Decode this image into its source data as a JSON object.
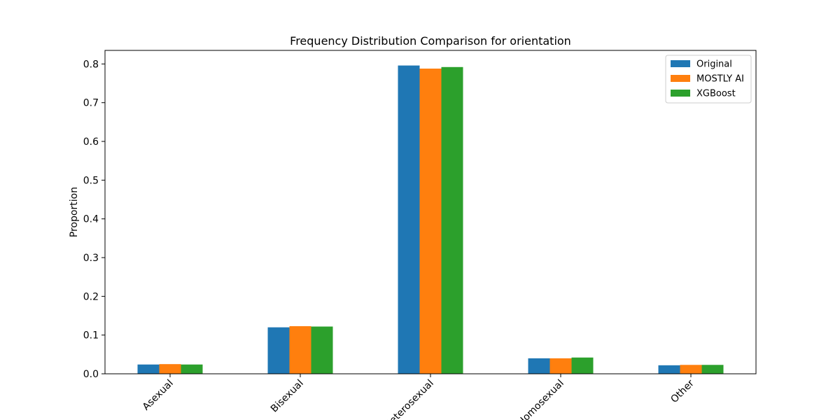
{
  "chart_data": {
    "type": "bar",
    "title": "Frequency Distribution Comparison for orientation",
    "xlabel": "",
    "ylabel": "Proportion",
    "ylim": [
      0,
      0.835
    ],
    "yticks": [
      0.0,
      0.1,
      0.2,
      0.3,
      0.4,
      0.5,
      0.6,
      0.7,
      0.8
    ],
    "ytick_labels": [
      "0.0",
      "0.1",
      "0.2",
      "0.3",
      "0.4",
      "0.5",
      "0.6",
      "0.7",
      "0.8"
    ],
    "categories": [
      "Asexual",
      "Bisexual",
      "Heterosexual",
      "Homosexual",
      "Other"
    ],
    "series": [
      {
        "name": "Original",
        "color": "#1f77b4",
        "values": [
          0.024,
          0.12,
          0.796,
          0.04,
          0.022
        ]
      },
      {
        "name": "MOSTLY AI",
        "color": "#ff7f0e",
        "values": [
          0.025,
          0.123,
          0.788,
          0.04,
          0.023
        ]
      },
      {
        "name": "XGBoost",
        "color": "#2ca02c",
        "values": [
          0.024,
          0.122,
          0.792,
          0.042,
          0.023
        ]
      }
    ],
    "legend": "top-right",
    "grid": false
  }
}
